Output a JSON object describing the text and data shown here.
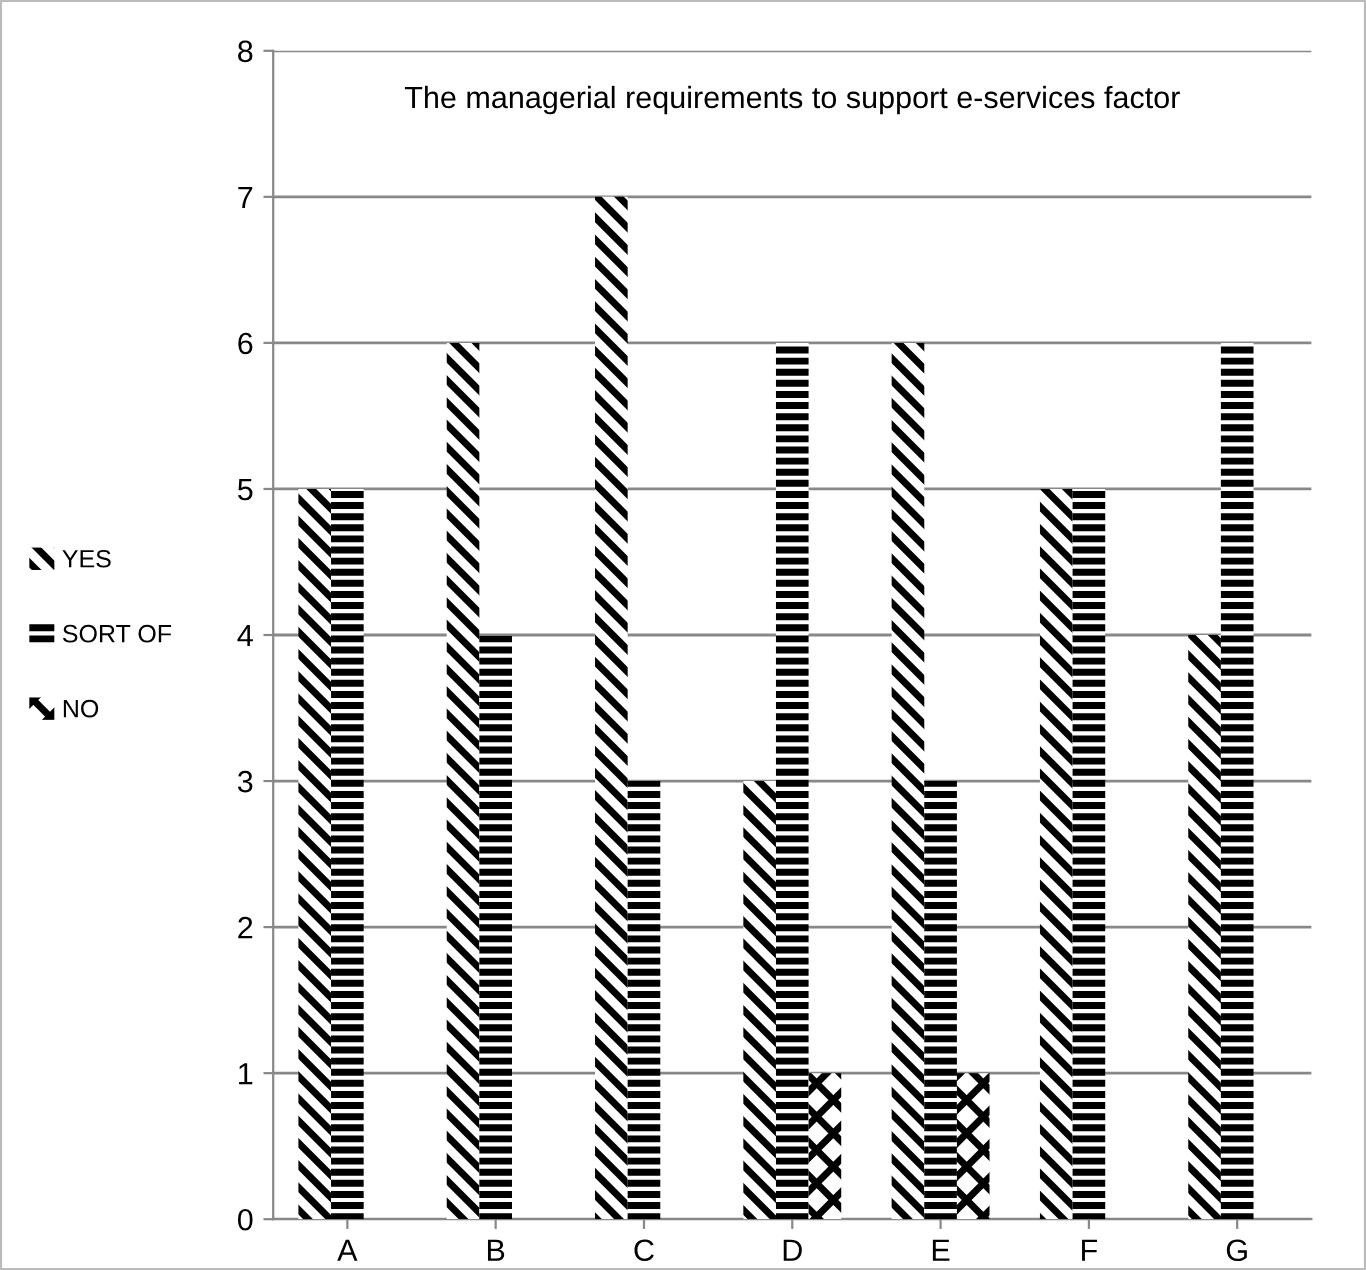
{
  "chart_data": {
    "type": "bar",
    "title": "The managerial requirements to support e-services factor",
    "categories": [
      "A",
      "B",
      "C",
      "D",
      "E",
      "F",
      "G"
    ],
    "series": [
      {
        "name": "YES",
        "color": "#000000",
        "values": [
          5,
          6,
          7,
          3,
          6,
          5,
          4
        ]
      },
      {
        "name": "SORT OF",
        "color": "#000000",
        "values": [
          5,
          4,
          3,
          6,
          3,
          5,
          6
        ]
      },
      {
        "name": "NO",
        "color": "#000000",
        "values": [
          0,
          0,
          0,
          1,
          1,
          0,
          0
        ]
      }
    ],
    "ylim": [
      0,
      8
    ],
    "yticks": [
      0,
      1,
      2,
      3,
      4,
      5,
      6,
      7,
      8
    ],
    "grid": "y",
    "legend": "left"
  }
}
